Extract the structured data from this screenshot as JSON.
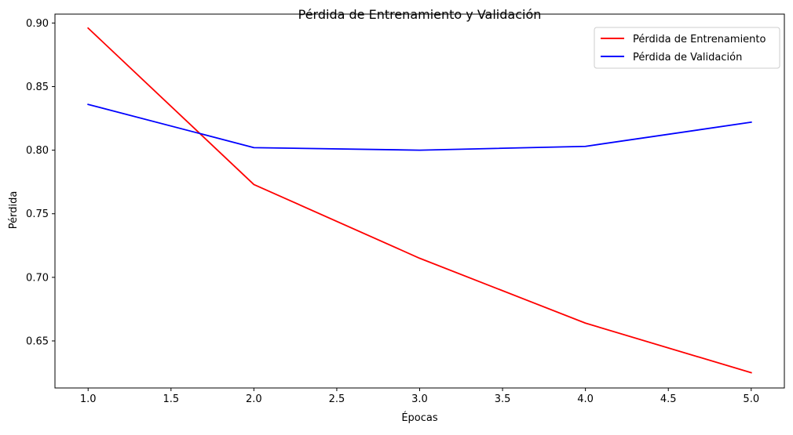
{
  "chart_data": {
    "type": "line",
    "title": "Pérdida de Entrenamiento y Validación",
    "xlabel": "Épocas",
    "ylabel": "Pérdida",
    "x": [
      1,
      2,
      3,
      4,
      5
    ],
    "xlim": [
      0.8,
      5.2
    ],
    "ylim": [
      0.613,
      0.907
    ],
    "xticks": [
      1.0,
      1.5,
      2.0,
      2.5,
      3.0,
      3.5,
      4.0,
      4.5,
      5.0
    ],
    "xtick_labels": [
      "1.0",
      "1.5",
      "2.0",
      "2.5",
      "3.0",
      "3.5",
      "4.0",
      "4.5",
      "5.0"
    ],
    "yticks": [
      0.65,
      0.7,
      0.75,
      0.8,
      0.85,
      0.9
    ],
    "ytick_labels": [
      "0.65",
      "0.70",
      "0.75",
      "0.80",
      "0.85",
      "0.90"
    ],
    "grid": false,
    "legend_position": "upper right",
    "series": [
      {
        "name": "Pérdida de Entrenamiento",
        "color": "#ff0000",
        "values": [
          0.896,
          0.773,
          0.715,
          0.664,
          0.625
        ]
      },
      {
        "name": "Pérdida de Validación",
        "color": "#0000ff",
        "values": [
          0.836,
          0.802,
          0.8,
          0.803,
          0.822
        ]
      }
    ]
  }
}
